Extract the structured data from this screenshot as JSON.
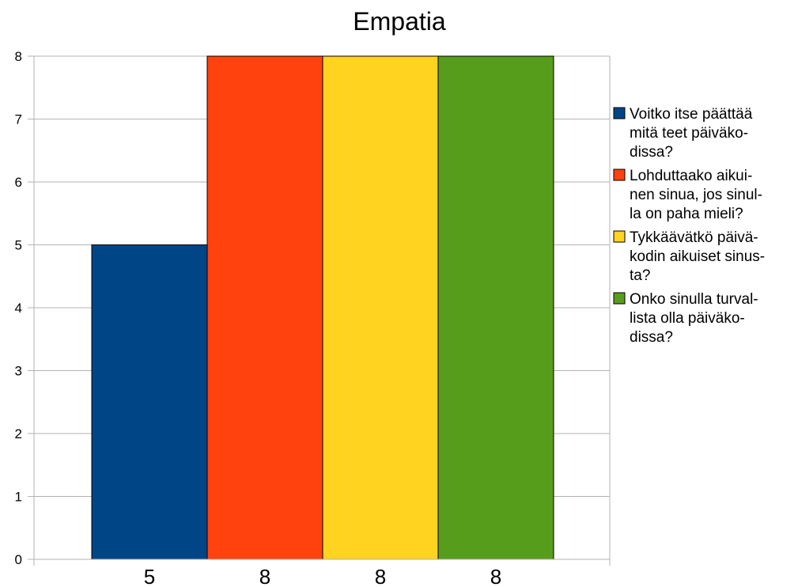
{
  "chart_data": {
    "type": "bar",
    "title": "Empatia",
    "categories": [
      "5",
      "8",
      "8",
      "8"
    ],
    "ylim": [
      0,
      8
    ],
    "yticks": [
      0,
      1,
      2,
      3,
      4,
      5,
      6,
      7,
      8
    ],
    "grid": true,
    "legend_position": "right",
    "series": [
      {
        "name": "Voitko itse päättää mitä teet päiväkodissa?",
        "legend_lines": [
          "Voitko itse päättää",
          "mitä teet päiväko-",
          "dissa?"
        ],
        "value": 5,
        "color": "#004586"
      },
      {
        "name": "Lohduttaako aikuinen sinua, jos sinulla on paha mieli?",
        "legend_lines": [
          "Lohduttaako aikui-",
          "nen sinua, jos sinul-",
          "la on paha mieli?"
        ],
        "value": 8,
        "color": "#ff420e"
      },
      {
        "name": "Tykkäävätkö päiväkodin aikuiset sinusta?",
        "legend_lines": [
          "Tykkäävätkö päivä-",
          "kodin aikuiset sinus-",
          "ta?"
        ],
        "value": 8,
        "color": "#ffd320"
      },
      {
        "name": "Onko sinulla turvallista olla päiväkodissa?",
        "legend_lines": [
          "Onko sinulla turval-",
          "lista olla päiväko-",
          "dissa?"
        ],
        "value": 8,
        "color": "#579d1c"
      }
    ]
  }
}
